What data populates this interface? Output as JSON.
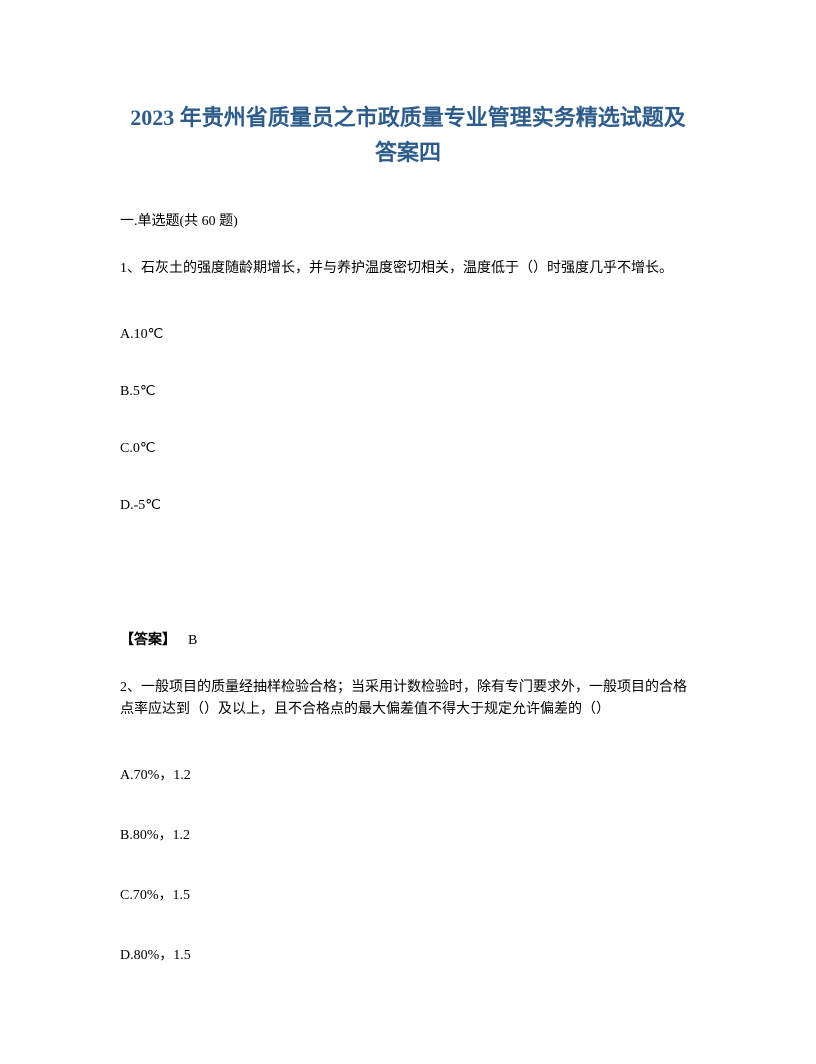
{
  "document": {
    "title": "2023 年贵州省质量员之市政质量专业管理实务精选试题及答案四",
    "section_header": "一.单选题(共 60 题)",
    "question1": {
      "text": "1、石灰土的强度随龄期增长，并与养护温度密切相关，温度低于（）时强度几乎不增长。",
      "options": {
        "A": "A.10℃",
        "B": "B.5℃",
        "C": "C.0℃",
        "D": "D.-5℃"
      },
      "answer_label": "【答案】",
      "answer_value": "B"
    },
    "question2": {
      "text": "2、一般项目的质量经抽样检验合格；当采用计数检验时，除有专门要求外，一般项目的合格点率应达到（）及以上，且不合格点的最大偏差值不得大于规定允许偏差的（）",
      "options": {
        "A": "A.70%，1.2",
        "B": "B.80%，1.2",
        "C": "C.70%，1.5",
        "D": "D.80%，1.5"
      }
    }
  },
  "styles": {
    "title_color": "#2e5c8a",
    "text_color": "#000000",
    "background_color": "#ffffff",
    "title_fontsize": 22,
    "body_fontsize": 14
  }
}
